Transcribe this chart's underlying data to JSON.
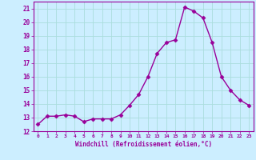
{
  "x": [
    0,
    1,
    2,
    3,
    4,
    5,
    6,
    7,
    8,
    9,
    10,
    11,
    12,
    13,
    14,
    15,
    16,
    17,
    18,
    19,
    20,
    21,
    22,
    23
  ],
  "y": [
    12.5,
    13.1,
    13.1,
    13.2,
    13.1,
    12.7,
    12.9,
    12.9,
    12.9,
    13.2,
    13.9,
    14.7,
    16.0,
    17.7,
    18.5,
    18.7,
    21.1,
    20.8,
    20.3,
    18.5,
    16.0,
    15.0,
    14.3,
    13.9
  ],
  "color": "#990099",
  "bg_color": "#cceeff",
  "grid_color": "#aadddd",
  "ylim": [
    12,
    21.5
  ],
  "yticks": [
    12,
    13,
    14,
    15,
    16,
    17,
    18,
    19,
    20,
    21
  ],
  "xticks": [
    0,
    1,
    2,
    3,
    4,
    5,
    6,
    7,
    8,
    9,
    10,
    11,
    12,
    13,
    14,
    15,
    16,
    17,
    18,
    19,
    20,
    21,
    22,
    23
  ],
  "xlabel": "Windchill (Refroidissement éolien,°C)",
  "line_width": 1.0,
  "marker": "D",
  "marker_size": 2.5
}
